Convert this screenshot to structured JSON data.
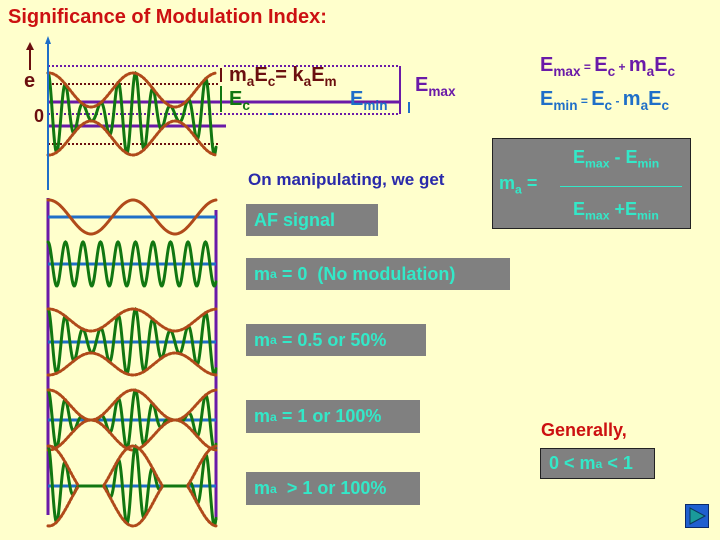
{
  "title": "Significance of Modulation Index:",
  "axis": {
    "y_label": "e",
    "zero_label": "0"
  },
  "annotations": {
    "ma_ec_prefix": "m",
    "ma_sub": "a",
    "ec_E": "E",
    "ec_sub": "c",
    "eq": "= k",
    "ka_sub": "a",
    "em_E": "E",
    "em_sub": "m",
    "ec_label_E": "E",
    "ec_label_sub": "c",
    "emin_E": "E",
    "emin_sub": "min",
    "emax_E": "E",
    "emax_sub": "max"
  },
  "formulas": {
    "emax": {
      "lhs": "E",
      "lhs_sub": "max",
      "eq": " = ",
      "ec": "E",
      "ec_sub": "c",
      "op": " + ",
      "m": "m",
      "m_sub": "a",
      "e2": "E",
      "e2_sub": "c"
    },
    "emin": {
      "lhs": "E",
      "lhs_sub": "min",
      "eq": " = ",
      "ec": "E",
      "ec_sub": "c",
      "op": " - ",
      "m": "m",
      "m_sub": "a",
      "e2": "E",
      "e2_sub": "c"
    }
  },
  "manipulating_text": "On manipulating, we get",
  "ma_formula": {
    "lhs": "m",
    "lhs_sub": "a",
    "eq": " =",
    "num_a": "E",
    "num_a_sub": "max",
    "num_op": " - ",
    "num_b": "E",
    "num_b_sub": "min",
    "den_a": "E",
    "den_a_sub": "max",
    "den_op": " +",
    "den_b": "E",
    "den_b_sub": "min"
  },
  "labels": {
    "af_signal": "AF signal",
    "no_mod": {
      "m": "m",
      "sub": "a",
      "text": " = 0  (No modulation)"
    },
    "half": {
      "m": "m",
      "sub": "a",
      "text": " = 0.5 or 50%"
    },
    "full": {
      "m": "m",
      "sub": "a",
      "text": " = 1 or 100%"
    },
    "over": {
      "m": "m",
      "sub": "a",
      "text": "  > 1 or 100%"
    }
  },
  "generally": "Generally,",
  "range": {
    "pre": "0 < m",
    "sub": "a",
    "post": " < 1"
  },
  "nav": {
    "next_icon": "play-next-icon"
  },
  "colors": {
    "background": "#ffffcc",
    "title": "#cc1111",
    "carrier": "#117711",
    "envelope": "#b04a1a",
    "purple": "#6a1aa8",
    "blue": "#1f6fc8",
    "box_bg": "#808080",
    "box_text": "#33e8c8"
  }
}
